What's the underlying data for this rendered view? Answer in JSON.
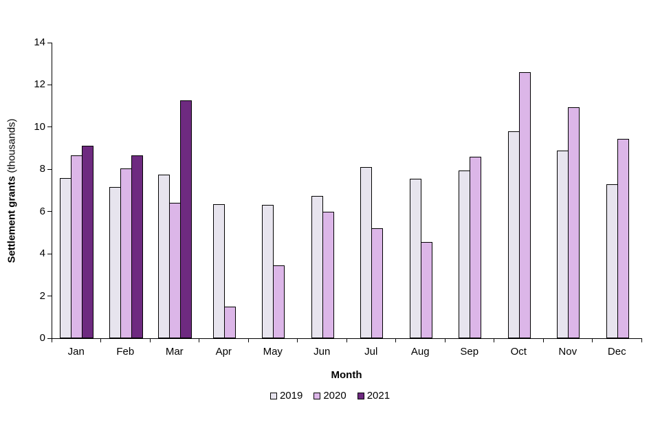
{
  "chart_data": {
    "type": "bar",
    "title": "",
    "xlabel": "Month",
    "ylabel": "Settlement grants (thousands)",
    "ylabel_bold": "Settlement grants",
    "ylabel_normal": " (thousands)",
    "ylim": [
      0,
      14
    ],
    "ytick_step": 2,
    "grid": false,
    "legend_position": "bottom",
    "categories": [
      "Jan",
      "Feb",
      "Mar",
      "Apr",
      "May",
      "Jun",
      "Jul",
      "Aug",
      "Sep",
      "Oct",
      "Nov",
      "Dec"
    ],
    "series": [
      {
        "name": "2019",
        "color": "#e7e4ee",
        "values": [
          7.6,
          7.15,
          7.75,
          6.35,
          6.3,
          6.75,
          8.1,
          7.55,
          7.95,
          9.8,
          8.9,
          7.3
        ]
      },
      {
        "name": "2020",
        "color": "#dcb6e8",
        "values": [
          8.65,
          8.05,
          6.4,
          1.5,
          3.45,
          6.0,
          5.2,
          4.55,
          8.6,
          12.6,
          10.95,
          9.45
        ]
      },
      {
        "name": "2021",
        "color": "#6e2a80",
        "values": [
          9.1,
          8.65,
          11.25,
          null,
          null,
          null,
          null,
          null,
          null,
          null,
          null,
          null
        ]
      }
    ]
  },
  "colors": {
    "axis": "#000000",
    "background": "#ffffff"
  }
}
